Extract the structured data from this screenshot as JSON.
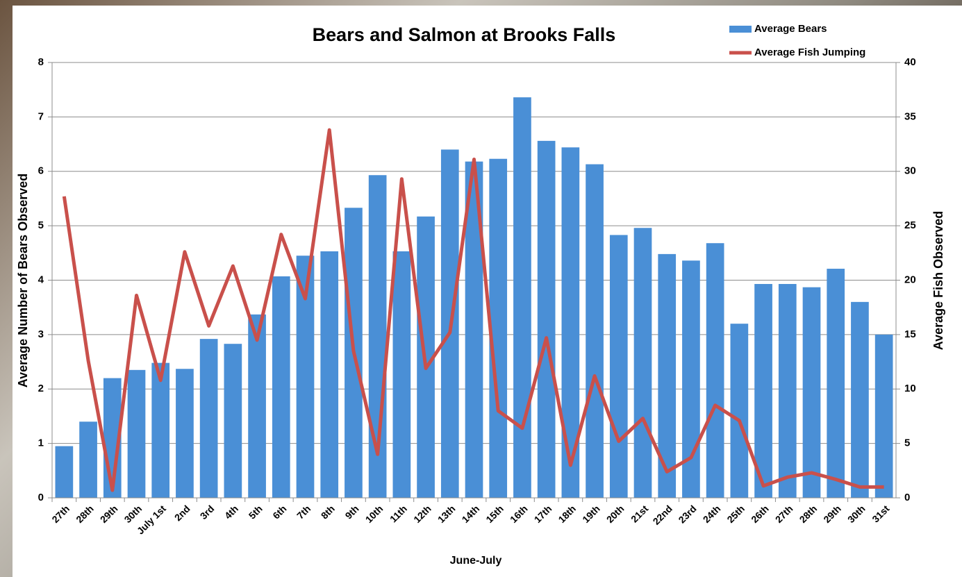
{
  "chart_data": {
    "type": "bar-line",
    "title": "Bears and Salmon at Brooks Falls",
    "x_label": "June-July",
    "y_label": "Average Number of Bears Observed",
    "y2_label": "Average Fish Observed",
    "categories": [
      "27th",
      "28th",
      "29th",
      "30th",
      "July 1st",
      "2nd",
      "3rd",
      "4th",
      "5th",
      "6th",
      "7th",
      "8th",
      "9th",
      "10th",
      "11th",
      "12th",
      "13th",
      "14th",
      "15th",
      "16th",
      "17th",
      "18th",
      "19th",
      "20th",
      "21st",
      "22nd",
      "23rd",
      "24th",
      "25th",
      "26th",
      "27th",
      "28th",
      "29th",
      "30th",
      "31st"
    ],
    "series": [
      {
        "name": "Average Bears",
        "type": "bar",
        "color": "#4a8fd6",
        "values": [
          0.95,
          1.4,
          2.2,
          2.35,
          2.48,
          2.37,
          2.92,
          2.83,
          3.37,
          4.07,
          4.45,
          4.53,
          5.33,
          5.93,
          4.53,
          5.17,
          6.4,
          6.18,
          6.23,
          7.36,
          6.56,
          6.44,
          6.13,
          4.83,
          4.96,
          4.48,
          4.36,
          4.68,
          3.2,
          3.93,
          3.93,
          3.87,
          4.21,
          3.6,
          3.0
        ]
      },
      {
        "name": "Average Fish Jumping",
        "type": "line",
        "axis": "y2",
        "color": "#c9504b",
        "values": [
          27.7,
          12.6,
          0.7,
          18.6,
          10.8,
          22.6,
          15.8,
          21.3,
          14.5,
          24.2,
          18.3,
          33.8,
          13.5,
          4.0,
          29.3,
          11.9,
          15.2,
          31.1,
          8.0,
          6.4,
          14.7,
          3.0,
          11.2,
          5.2,
          7.3,
          2.4,
          3.7,
          8.5,
          7.1,
          1.1,
          1.9,
          2.3,
          1.7,
          1.0,
          1.0
        ]
      }
    ],
    "ylim": [
      0,
      8
    ],
    "yticks": [
      0,
      1,
      2,
      3,
      4,
      5,
      6,
      7,
      8
    ],
    "y2lim": [
      0,
      40
    ],
    "y2ticks": [
      0,
      5,
      10,
      15,
      20,
      25,
      30,
      35,
      40
    ],
    "grid": true,
    "legend": "top-right"
  }
}
